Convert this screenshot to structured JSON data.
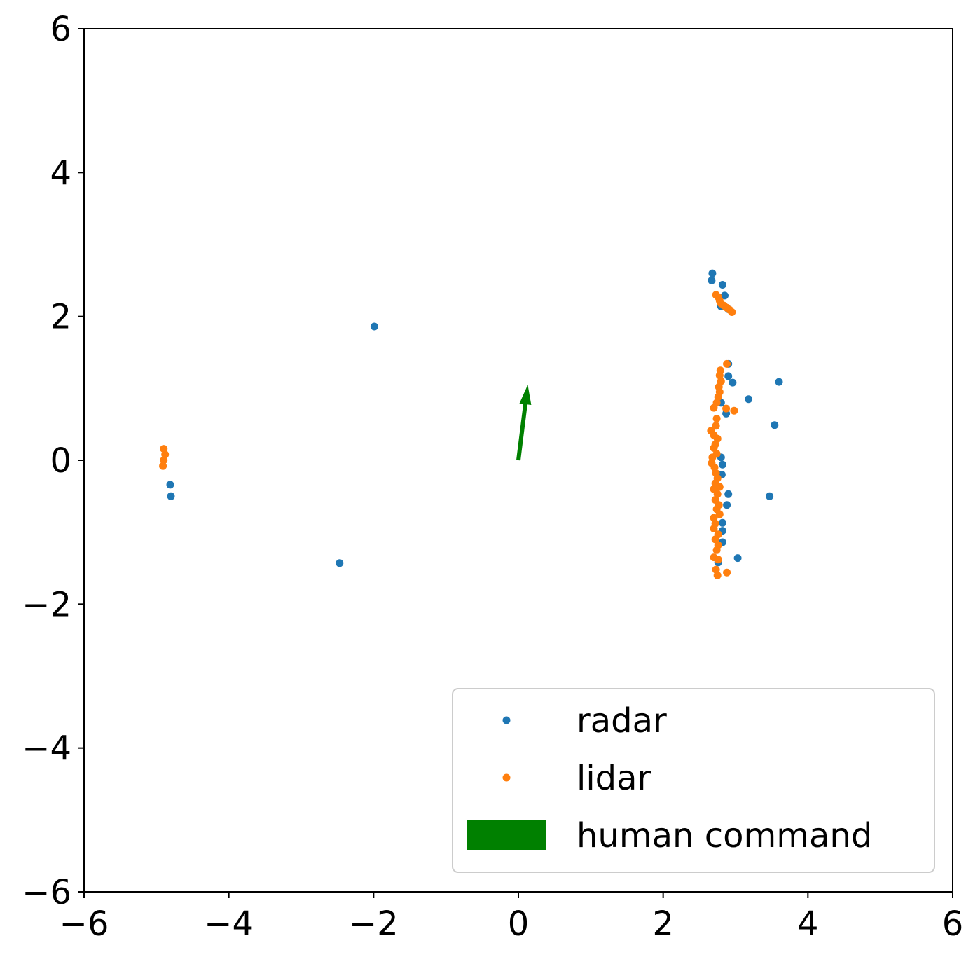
{
  "chart_data": {
    "type": "scatter",
    "title": "",
    "xlabel": "",
    "ylabel": "",
    "xlim": [
      -6,
      6
    ],
    "ylim": [
      -6,
      6
    ],
    "x_ticks": [
      -6,
      -4,
      -2,
      0,
      2,
      4,
      6
    ],
    "y_ticks": [
      -6,
      -4,
      -2,
      0,
      2,
      4,
      6
    ],
    "x_tick_labels": [
      "−6",
      "−4",
      "−2",
      "0",
      "2",
      "4",
      "6"
    ],
    "y_tick_labels": [
      "−6",
      "−4",
      "−2",
      "0",
      "2",
      "4",
      "6"
    ],
    "grid": false,
    "legend_position": "lower-right",
    "series": [
      {
        "name": "radar",
        "color": "#1f77b4",
        "points": [
          [
            2.68,
            2.6
          ],
          [
            2.67,
            2.5
          ],
          [
            2.82,
            2.44
          ],
          [
            2.85,
            2.29
          ],
          [
            2.8,
            2.14
          ],
          [
            2.9,
            2.1
          ],
          [
            -1.99,
            1.86
          ],
          [
            2.9,
            1.34
          ],
          [
            2.9,
            1.17
          ],
          [
            2.96,
            1.08
          ],
          [
            3.6,
            1.09
          ],
          [
            3.18,
            0.85
          ],
          [
            2.8,
            0.8
          ],
          [
            2.87,
            0.65
          ],
          [
            3.54,
            0.49
          ],
          [
            2.8,
            0.04
          ],
          [
            2.82,
            -0.06
          ],
          [
            2.81,
            -0.2
          ],
          [
            2.9,
            -0.47
          ],
          [
            2.88,
            -0.62
          ],
          [
            2.82,
            -0.87
          ],
          [
            2.82,
            -0.98
          ],
          [
            2.82,
            -1.14
          ],
          [
            2.76,
            -1.42
          ],
          [
            3.03,
            -1.36
          ],
          [
            3.47,
            -0.5
          ],
          [
            -4.81,
            -0.34
          ],
          [
            -4.8,
            -0.5
          ],
          [
            -2.47,
            -1.43
          ]
        ]
      },
      {
        "name": "lidar",
        "color": "#ff7f0e",
        "points": [
          [
            -4.9,
            0.16
          ],
          [
            -4.88,
            0.08
          ],
          [
            -4.9,
            0.0
          ],
          [
            -4.91,
            -0.08
          ],
          [
            2.73,
            2.3
          ],
          [
            2.76,
            2.27
          ],
          [
            2.78,
            2.22
          ],
          [
            2.8,
            2.18
          ],
          [
            2.84,
            2.15
          ],
          [
            2.88,
            2.12
          ],
          [
            2.92,
            2.09
          ],
          [
            2.95,
            2.06
          ],
          [
            2.88,
            1.34
          ],
          [
            2.79,
            1.25
          ],
          [
            2.78,
            1.18
          ],
          [
            2.8,
            1.1
          ],
          [
            2.77,
            1.02
          ],
          [
            2.78,
            0.95
          ],
          [
            2.76,
            0.88
          ],
          [
            2.74,
            0.8
          ],
          [
            2.7,
            0.73
          ],
          [
            2.87,
            0.72
          ],
          [
            2.98,
            0.69
          ],
          [
            2.74,
            0.58
          ],
          [
            2.73,
            0.48
          ],
          [
            2.66,
            0.41
          ],
          [
            2.7,
            0.35
          ],
          [
            2.75,
            0.3
          ],
          [
            2.72,
            0.22
          ],
          [
            2.7,
            0.17
          ],
          [
            2.74,
            0.09
          ],
          [
            2.68,
            0.04
          ],
          [
            2.67,
            -0.04
          ],
          [
            2.71,
            -0.1
          ],
          [
            2.73,
            -0.18
          ],
          [
            2.75,
            -0.25
          ],
          [
            2.72,
            -0.32
          ],
          [
            2.78,
            -0.37
          ],
          [
            2.7,
            -0.4
          ],
          [
            2.75,
            -0.47
          ],
          [
            2.72,
            -0.55
          ],
          [
            2.77,
            -0.62
          ],
          [
            2.74,
            -0.68
          ],
          [
            2.78,
            -0.75
          ],
          [
            2.7,
            -0.8
          ],
          [
            2.72,
            -0.88
          ],
          [
            2.7,
            -0.95
          ],
          [
            2.76,
            -1.03
          ],
          [
            2.72,
            -1.1
          ],
          [
            2.76,
            -1.18
          ],
          [
            2.74,
            -1.25
          ],
          [
            2.7,
            -1.35
          ],
          [
            2.76,
            -1.38
          ],
          [
            2.73,
            -1.52
          ],
          [
            2.75,
            -1.6
          ],
          [
            2.88,
            -1.56
          ]
        ]
      }
    ],
    "arrows": [
      {
        "name": "human command",
        "color": "#008000",
        "x": 0.0,
        "y": 0.0,
        "dx": 0.13,
        "dy": 1.05
      }
    ],
    "legend": [
      {
        "label": "radar",
        "kind": "marker",
        "color": "#1f77b4"
      },
      {
        "label": "lidar",
        "kind": "marker",
        "color": "#ff7f0e"
      },
      {
        "label": "human command",
        "kind": "patch",
        "color": "#008000"
      }
    ]
  }
}
